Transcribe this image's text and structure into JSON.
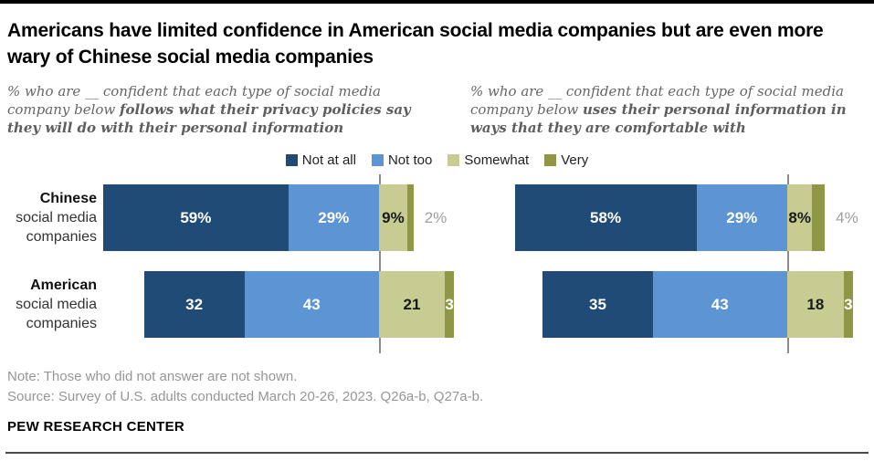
{
  "title": "Americans have limited confidence in American social media companies but are even more wary of Chinese social media companies",
  "legend": {
    "items": [
      {
        "label": "Not at all",
        "color": "#1f4b76"
      },
      {
        "label": "Not too",
        "color": "#5c94d4"
      },
      {
        "label": "Somewhat",
        "color": "#c9cc92"
      },
      {
        "label": "Very",
        "color": "#8f9646"
      }
    ]
  },
  "chart_data": [
    {
      "type": "bar",
      "variant": "horizontal-diverging-stacked",
      "subtitle_prefix": "% who are __ confident that each type of social media company below ",
      "subtitle_bold": "follows what their privacy policies say they will do with their personal information",
      "series_labels": [
        "Not at all",
        "Not too",
        "Somewhat",
        "Very"
      ],
      "divider_after_series": 2,
      "categories": [
        "Chinese social media companies",
        "American social media companies"
      ],
      "rows": [
        {
          "category_lines": [
            "Chinese",
            "social media",
            "companies"
          ],
          "values": [
            59,
            29,
            9,
            2
          ],
          "labels": [
            "59%",
            "29%",
            "9%",
            "2%"
          ],
          "outside_labels": [
            false,
            false,
            false,
            true
          ]
        },
        {
          "category_lines": [
            "American",
            "social media",
            "companies"
          ],
          "values": [
            32,
            43,
            21,
            3
          ],
          "labels": [
            "32",
            "43",
            "21",
            "3"
          ],
          "outside_labels": [
            false,
            false,
            false,
            false
          ]
        }
      ]
    },
    {
      "type": "bar",
      "variant": "horizontal-diverging-stacked",
      "subtitle_prefix": "% who are __ confident that each type of social media company below ",
      "subtitle_bold": "uses their personal information in ways that they are comfortable with",
      "series_labels": [
        "Not at all",
        "Not too",
        "Somewhat",
        "Very"
      ],
      "divider_after_series": 2,
      "categories": [
        "Chinese social media companies",
        "American social media companies"
      ],
      "rows": [
        {
          "category_lines": [
            "Chinese",
            "social media",
            "companies"
          ],
          "values": [
            58,
            29,
            8,
            4
          ],
          "labels": [
            "58%",
            "29%",
            "8%",
            "4%"
          ],
          "outside_labels": [
            false,
            false,
            false,
            true
          ]
        },
        {
          "category_lines": [
            "American",
            "social media",
            "companies"
          ],
          "values": [
            35,
            43,
            18,
            3
          ],
          "labels": [
            "35",
            "43",
            "18",
            "3"
          ],
          "outside_labels": [
            false,
            false,
            false,
            false
          ]
        }
      ]
    }
  ],
  "footer": {
    "note": "Note: Those who did not answer are not shown.",
    "source": "Source: Survey of U.S. adults conducted March 20-26, 2023. Q26a-b, Q27a-b.",
    "brand": "PEW RESEARCH CENTER"
  }
}
